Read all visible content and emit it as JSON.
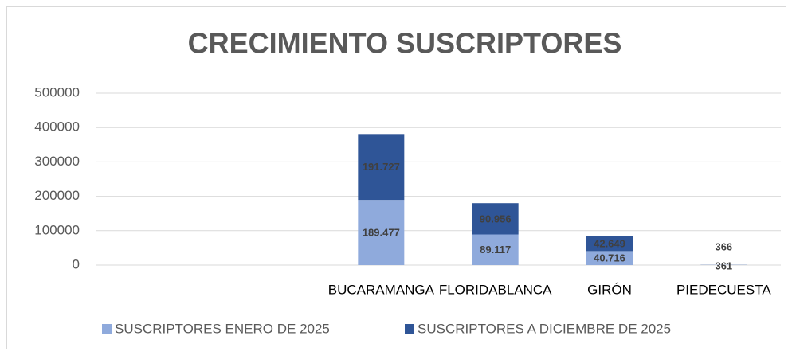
{
  "chart_data": {
    "type": "stacked_bar",
    "title": "CRECIMIENTO SUSCRIPTORES",
    "categories": [
      null,
      null,
      "BUCARAMANGA",
      "FLORIDABLANCA",
      "GIRÓN",
      "PIEDECUESTA"
    ],
    "series": [
      {
        "name": "SUSCRIPTORES ENERO DE 2025",
        "color": "#8faadc",
        "values": [
          null,
          null,
          189477,
          89117,
          40716,
          361
        ],
        "value_labels": [
          null,
          null,
          "189.477",
          "89.117",
          "40.716",
          "361"
        ]
      },
      {
        "name": "SUSCRIPTORES A DICIEMBRE DE  2025",
        "color": "#2f5597",
        "values": [
          null,
          null,
          191727,
          90956,
          42649,
          366
        ],
        "value_labels": [
          null,
          null,
          "191.727",
          "90.956",
          "42.649",
          "366"
        ]
      }
    ],
    "ylim": [
      0,
      500000
    ],
    "yticks": [
      0,
      100000,
      200000,
      300000,
      400000,
      500000
    ],
    "grid": true,
    "legend": "bottom"
  }
}
